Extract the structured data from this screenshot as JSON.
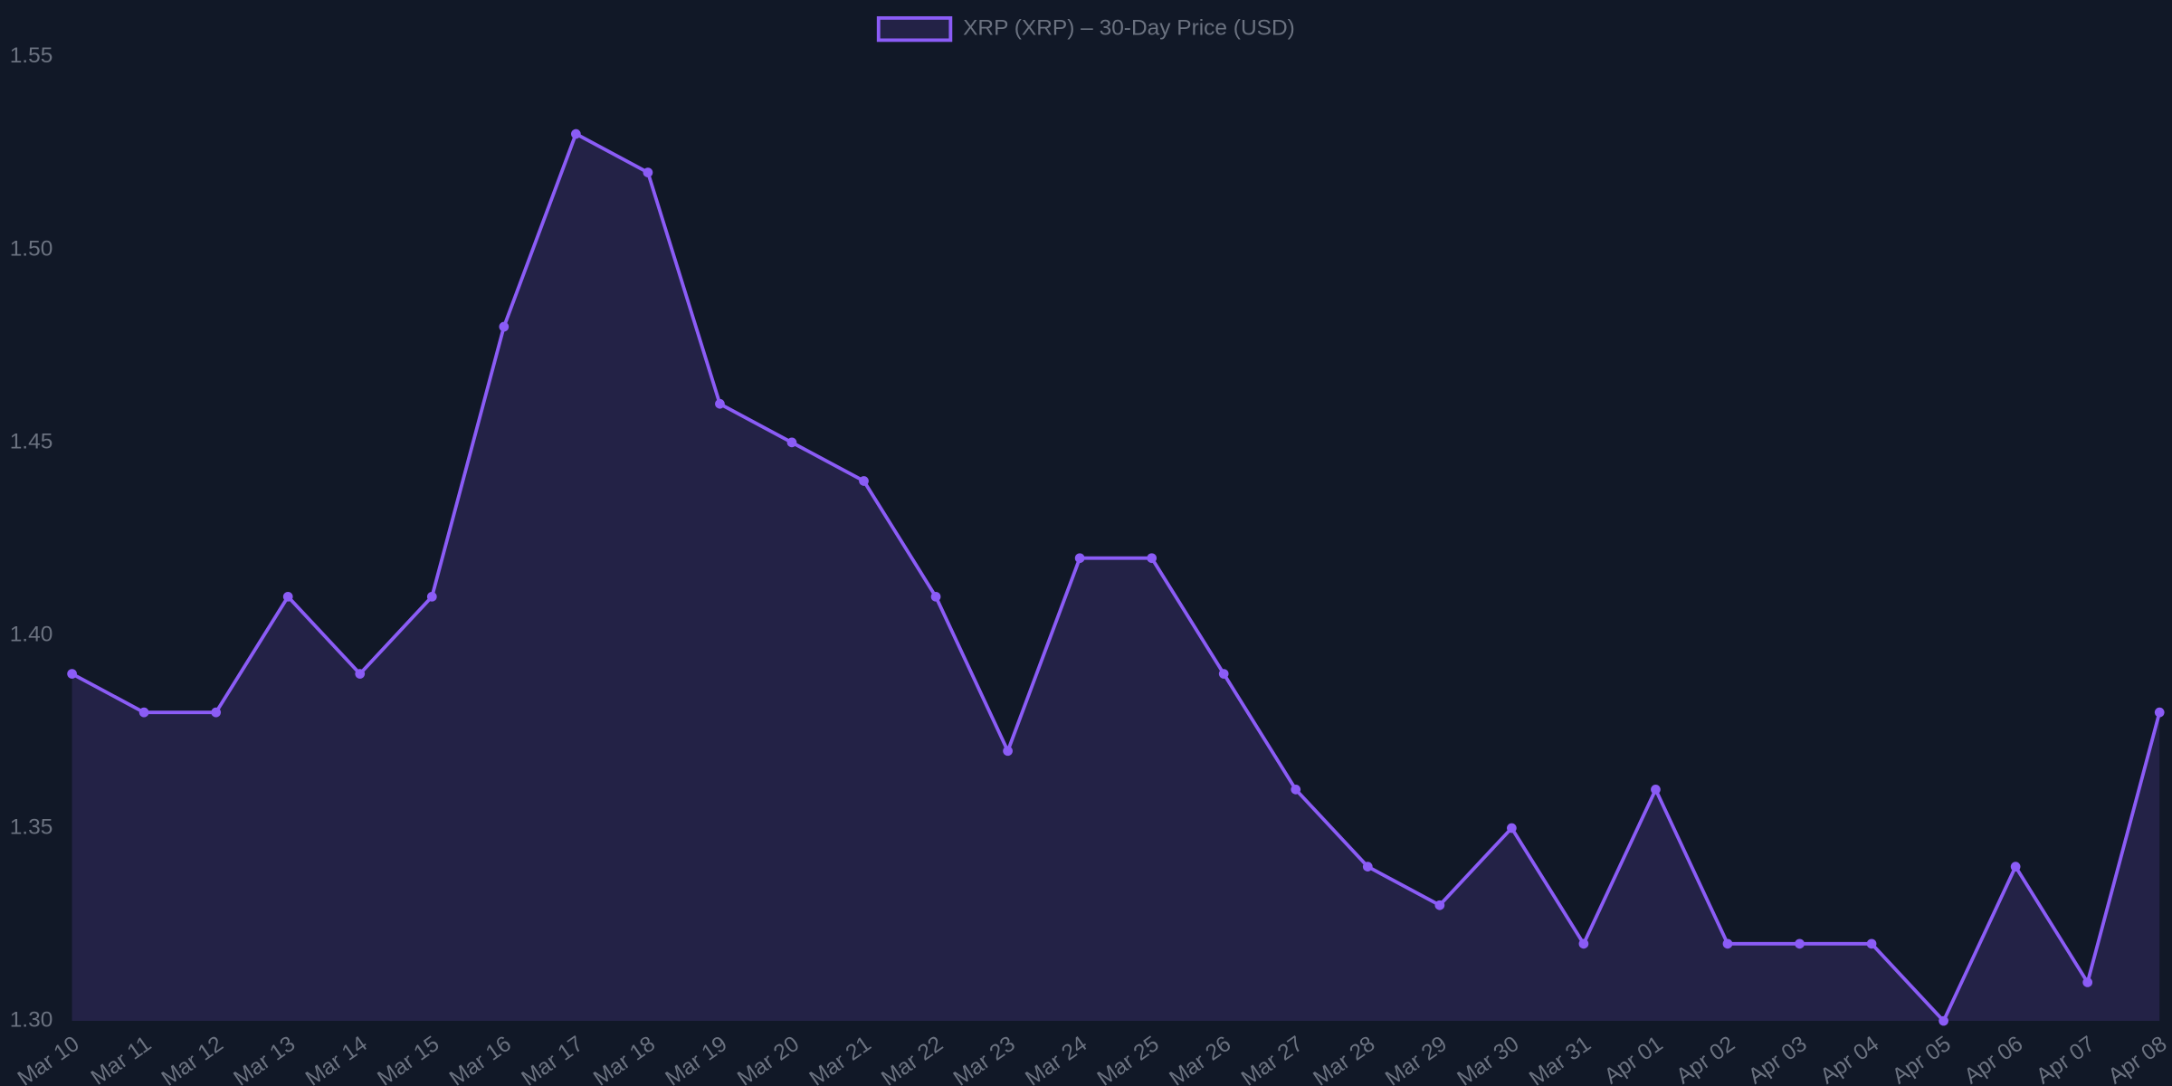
{
  "chart_data": {
    "type": "line",
    "categories": [
      "Mar 10",
      "Mar 11",
      "Mar 12",
      "Mar 13",
      "Mar 14",
      "Mar 15",
      "Mar 16",
      "Mar 17",
      "Mar 18",
      "Mar 19",
      "Mar 20",
      "Mar 21",
      "Mar 22",
      "Mar 23",
      "Mar 24",
      "Mar 25",
      "Mar 26",
      "Mar 27",
      "Mar 28",
      "Mar 29",
      "Mar 30",
      "Mar 31",
      "Apr 01",
      "Apr 02",
      "Apr 03",
      "Apr 04",
      "Apr 05",
      "Apr 06",
      "Apr 07",
      "Apr 08"
    ],
    "series": [
      {
        "name": "XRP (XRP) – 30-Day Price (USD)",
        "color": "#8b5cf6",
        "fill": "rgba(139,92,246,0.15)",
        "values": [
          1.39,
          1.38,
          1.38,
          1.41,
          1.39,
          1.41,
          1.48,
          1.53,
          1.52,
          1.46,
          1.45,
          1.44,
          1.41,
          1.37,
          1.42,
          1.42,
          1.39,
          1.36,
          1.34,
          1.33,
          1.35,
          1.32,
          1.36,
          1.32,
          1.32,
          1.32,
          1.3,
          1.34,
          1.31,
          1.38
        ]
      }
    ],
    "ylim": [
      1.3,
      1.55
    ],
    "yticks": [
      {
        "value": 1.3,
        "label": "1.30"
      },
      1.35,
      {
        "value": 1.4,
        "label": "1.40"
      },
      1.45,
      {
        "value": 1.5,
        "label": "1.50"
      },
      1.55
    ],
    "grid": false,
    "legend": "top"
  }
}
